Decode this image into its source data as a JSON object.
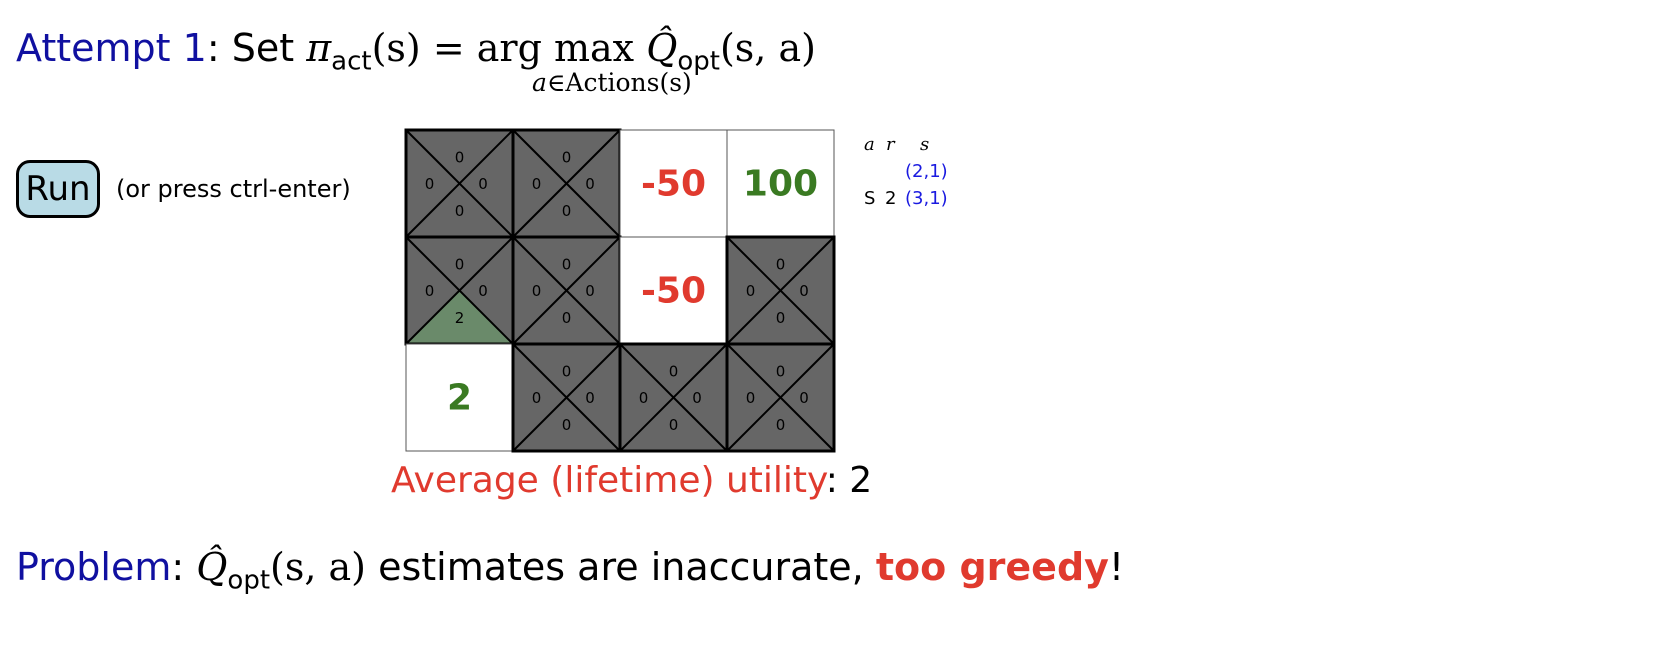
{
  "heading": {
    "attempt_label": "Attempt 1",
    "text_set": ": Set ",
    "pi": "π",
    "pi_sub": "act",
    "pi_arg": "(s) = arg",
    "max": "max",
    "max_under_a": "a",
    "max_under_rest": "∈Actions(s)",
    "q": "Q̂",
    "q_sub": "opt",
    "q_arg": "(s, a)"
  },
  "run_button": {
    "label": "Run"
  },
  "run_hint": "(or press ctrl-enter)",
  "colors": {
    "dark_cell": "#666666",
    "visited_triangle": "#6a8a6a",
    "negative_reward": "#e03a2e",
    "positive_reward": "#3a7a22",
    "button_fill": "#b9dbe6",
    "heading_blue": "#1010a0"
  },
  "grid": {
    "rows": 3,
    "cols": 4,
    "cells": [
      {
        "type": "q",
        "values": {
          "up": "0",
          "left": "0",
          "right": "0",
          "down": "0"
        }
      },
      {
        "type": "q",
        "values": {
          "up": "0",
          "left": "0",
          "right": "0",
          "down": "0"
        }
      },
      {
        "type": "reward",
        "text": "-50",
        "tone": "negative"
      },
      {
        "type": "reward",
        "text": "100",
        "tone": "positive"
      },
      {
        "type": "q",
        "values": {
          "up": "0",
          "left": "0",
          "right": "0",
          "down": "2"
        },
        "highlight": "down"
      },
      {
        "type": "q",
        "values": {
          "up": "0",
          "left": "0",
          "right": "0",
          "down": "0"
        }
      },
      {
        "type": "reward",
        "text": "-50",
        "tone": "negative"
      },
      {
        "type": "q",
        "values": {
          "up": "0",
          "left": "0",
          "right": "0",
          "down": "0"
        }
      },
      {
        "type": "reward",
        "text": "2",
        "tone": "positive"
      },
      {
        "type": "q",
        "values": {
          "up": "0",
          "left": "0",
          "right": "0",
          "down": "0"
        }
      },
      {
        "type": "q",
        "values": {
          "up": "0",
          "left": "0",
          "right": "0",
          "down": "0"
        }
      },
      {
        "type": "q",
        "values": {
          "up": "0",
          "left": "0",
          "right": "0",
          "down": "0"
        }
      }
    ]
  },
  "legend": {
    "headers": [
      "a",
      "r",
      "s"
    ],
    "rows": [
      {
        "a": "",
        "r": "",
        "s": "(2,1)"
      },
      {
        "a": "S",
        "r": "2",
        "s": "(3,1)"
      }
    ]
  },
  "average": {
    "label": "Average (lifetime) utility",
    "sep": ": ",
    "value": "2"
  },
  "problem": {
    "label": "Problem",
    "sep": ": ",
    "q": "Q̂",
    "q_sub": "opt",
    "q_arg": "(s, a)",
    "text": " estimates are inaccurate, ",
    "emph": "too greedy",
    "end": "!"
  }
}
